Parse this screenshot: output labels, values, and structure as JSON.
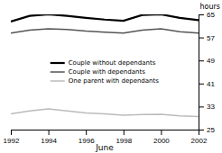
{
  "chart_data": {
    "type": "line",
    "xlabel": "June",
    "ylabel": "hours",
    "x": [
      1992,
      1993,
      1994,
      1995,
      1996,
      1997,
      1998,
      1999,
      2000,
      2001,
      2002
    ],
    "series": [
      {
        "name": "Couple without dependants",
        "color": "#000000",
        "values": [
          62.5,
          64.5,
          65.0,
          64.5,
          63.8,
          63.2,
          62.8,
          64.8,
          65.0,
          63.8,
          63.0
        ]
      },
      {
        "name": "Couple with dependants",
        "color": "#555555",
        "values": [
          58.5,
          59.5,
          60.0,
          59.8,
          59.2,
          58.8,
          58.5,
          59.5,
          60.0,
          59.0,
          58.5
        ]
      },
      {
        "name": "One parent with dependants",
        "color": "#bbbbbb",
        "values": [
          30.5,
          31.5,
          32.2,
          31.5,
          30.8,
          30.5,
          30.0,
          30.2,
          30.3,
          29.8,
          29.5
        ]
      }
    ],
    "xlim": [
      1992,
      2002
    ],
    "xticks": [
      1992,
      1994,
      1996,
      1998,
      2000,
      2002
    ],
    "ylim": [
      25,
      65
    ],
    "yticks": [
      25,
      33,
      41,
      49,
      57,
      65
    ],
    "grid": false,
    "legend": "center"
  }
}
